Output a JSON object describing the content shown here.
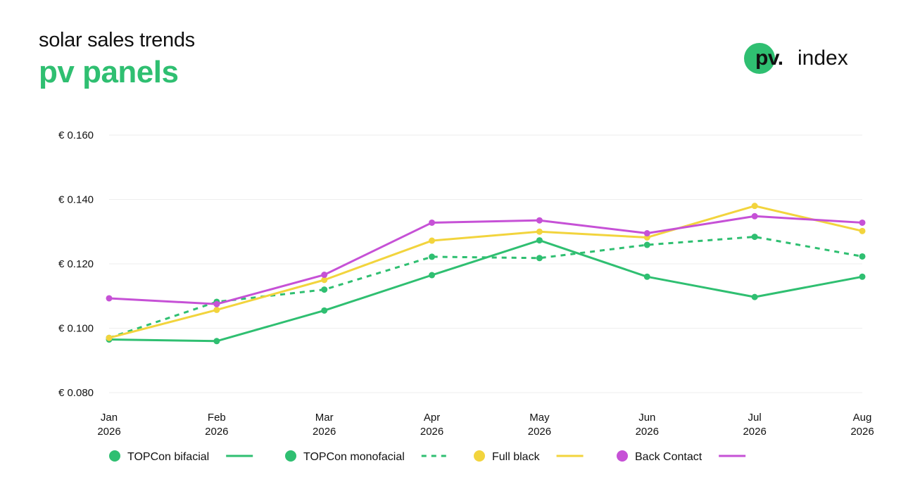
{
  "header": {
    "title": "solar sales trends",
    "subtitle": "pv panels"
  },
  "logo": {
    "mark": "pv.",
    "text": "index"
  },
  "colors": {
    "bifacial": "#2fbf71",
    "monofacial": "#2fbf71",
    "full_black": "#f2d43d",
    "back_contact": "#c651d6",
    "grid": "#eeeeee",
    "accent": "#2fbf71"
  },
  "chart_data": {
    "type": "line",
    "categories": [
      [
        "Jan",
        "2026"
      ],
      [
        "Feb",
        "2026"
      ],
      [
        "Mar",
        "2026"
      ],
      [
        "Apr",
        "2026"
      ],
      [
        "May",
        "2026"
      ],
      [
        "Jun",
        "2026"
      ],
      [
        "Jul",
        "2026"
      ],
      [
        "Aug",
        "2026"
      ]
    ],
    "y_ticks": [
      0.08,
      0.1,
      0.12,
      0.14,
      0.16
    ],
    "y_tick_labels": [
      "€ 0.080",
      "€ 0.100",
      "€ 0.120",
      "€ 0.140",
      "€ 0.160"
    ],
    "ylim": [
      0.08,
      0.16
    ],
    "grid": true,
    "legend_position": "bottom",
    "series": [
      {
        "name": "TOPCon bifacial",
        "key": "bifacial",
        "dash": "solid",
        "values": [
          0.0965,
          0.096,
          0.1055,
          0.1165,
          0.1273,
          0.116,
          0.1097,
          0.116
        ]
      },
      {
        "name": "TOPCon monofacial",
        "key": "monofacial",
        "dash": "dashed",
        "values": [
          0.097,
          0.1082,
          0.112,
          0.1222,
          0.1218,
          0.1259,
          0.1284,
          0.1223
        ]
      },
      {
        "name": "Full black",
        "key": "full_black",
        "dash": "solid",
        "values": [
          0.097,
          0.1057,
          0.115,
          0.1272,
          0.13,
          0.1282,
          0.138,
          0.1302
        ]
      },
      {
        "name": "Back Contact",
        "key": "back_contact",
        "dash": "solid",
        "values": [
          0.1093,
          0.1075,
          0.1166,
          0.1328,
          0.1335,
          0.1295,
          0.1348,
          0.1328
        ]
      }
    ]
  }
}
